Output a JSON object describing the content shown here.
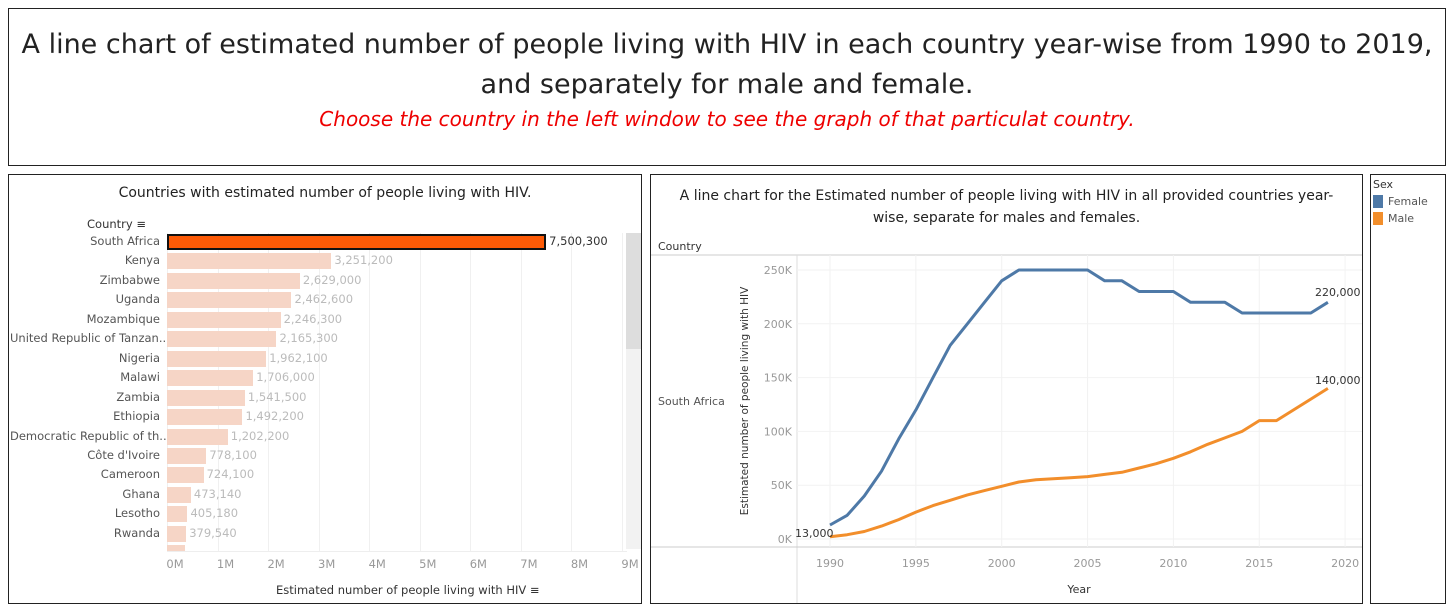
{
  "header": {
    "title": "A line chart of estimated number of people living with HIV in each country year-wise from 1990 to 2019, and separately for male and female.",
    "subtitle": "Choose the country in the left window to see the graph of that particulat country."
  },
  "colors": {
    "selected": "#fd5a06",
    "unselected": "#f6d5c6",
    "female": "#4e79a7",
    "male": "#f28e2b"
  },
  "chart_data": [
    {
      "type": "bar",
      "title": "Countries with estimated number of people living with HIV.",
      "ylabel": "Country",
      "xlabel": "Estimated number of people living with HIV",
      "selected": "South Africa",
      "categories": [
        "South Africa",
        "Kenya",
        "Zimbabwe",
        "Uganda",
        "Mozambique",
        "United Republic of Tanzan..",
        "Nigeria",
        "Malawi",
        "Zambia",
        "Ethiopia",
        "Democratic Republic of th..",
        "Côte d'Ivoire",
        "Cameroon",
        "Ghana",
        "Lesotho",
        "Rwanda"
      ],
      "values": [
        7500300,
        3251200,
        2629000,
        2462600,
        2246300,
        2165300,
        1962100,
        1706000,
        1541500,
        1492200,
        1202200,
        778100,
        724100,
        473140,
        405180,
        379540
      ],
      "value_labels": [
        "7,500,300",
        "3,251,200",
        "2,629,000",
        "2,462,600",
        "2,246,300",
        "2,165,300",
        "1,962,100",
        "1,706,000",
        "1,541,500",
        "1,492,200",
        "1,202,200",
        "778,100",
        "724,100",
        "473,140",
        "405,180",
        "379,540"
      ],
      "xlim": [
        0,
        9000000
      ],
      "xticks": [
        "0M",
        "1M",
        "2M",
        "3M",
        "4M",
        "5M",
        "6M",
        "7M",
        "8M",
        "9M"
      ]
    },
    {
      "type": "line",
      "title": "A line chart for the Estimated number of people living with HIV in all provided countries year-wise, separate for males and females.",
      "row_header": "Country",
      "row_label": "South Africa",
      "xlabel": "Year",
      "ylabel": "Estimated number of people living with HIV",
      "ylim": [
        0,
        250000
      ],
      "xlim": [
        1988,
        2021
      ],
      "yticks": [
        "0K",
        "50K",
        "100K",
        "150K",
        "200K",
        "250K"
      ],
      "xticks": [
        "1990",
        "1995",
        "2000",
        "2005",
        "2010",
        "2015",
        "2020"
      ],
      "legend": {
        "title": "Sex",
        "position": "right"
      },
      "x": [
        1990,
        1991,
        1992,
        1993,
        1994,
        1995,
        1996,
        1997,
        1998,
        1999,
        2000,
        2001,
        2002,
        2003,
        2004,
        2005,
        2006,
        2007,
        2008,
        2009,
        2010,
        2011,
        2012,
        2013,
        2014,
        2015,
        2016,
        2017,
        2018,
        2019
      ],
      "series": [
        {
          "name": "Female",
          "values": [
            13000,
            22000,
            40000,
            63000,
            93000,
            120000,
            150000,
            180000,
            200000,
            220000,
            240000,
            250000,
            250000,
            250000,
            250000,
            250000,
            240000,
            240000,
            230000,
            230000,
            230000,
            220000,
            220000,
            220000,
            210000,
            210000,
            210000,
            210000,
            210000,
            220000
          ]
        },
        {
          "name": "Male",
          "values": [
            2000,
            4000,
            7000,
            12000,
            18000,
            25000,
            31000,
            36000,
            41000,
            45000,
            49000,
            53000,
            55000,
            56000,
            57000,
            58000,
            60000,
            62000,
            66000,
            70000,
            75000,
            81000,
            88000,
            94000,
            100000,
            110000,
            110000,
            120000,
            130000,
            140000
          ]
        }
      ],
      "annotations": [
        "13,000",
        "220,000",
        "140,000"
      ]
    }
  ]
}
